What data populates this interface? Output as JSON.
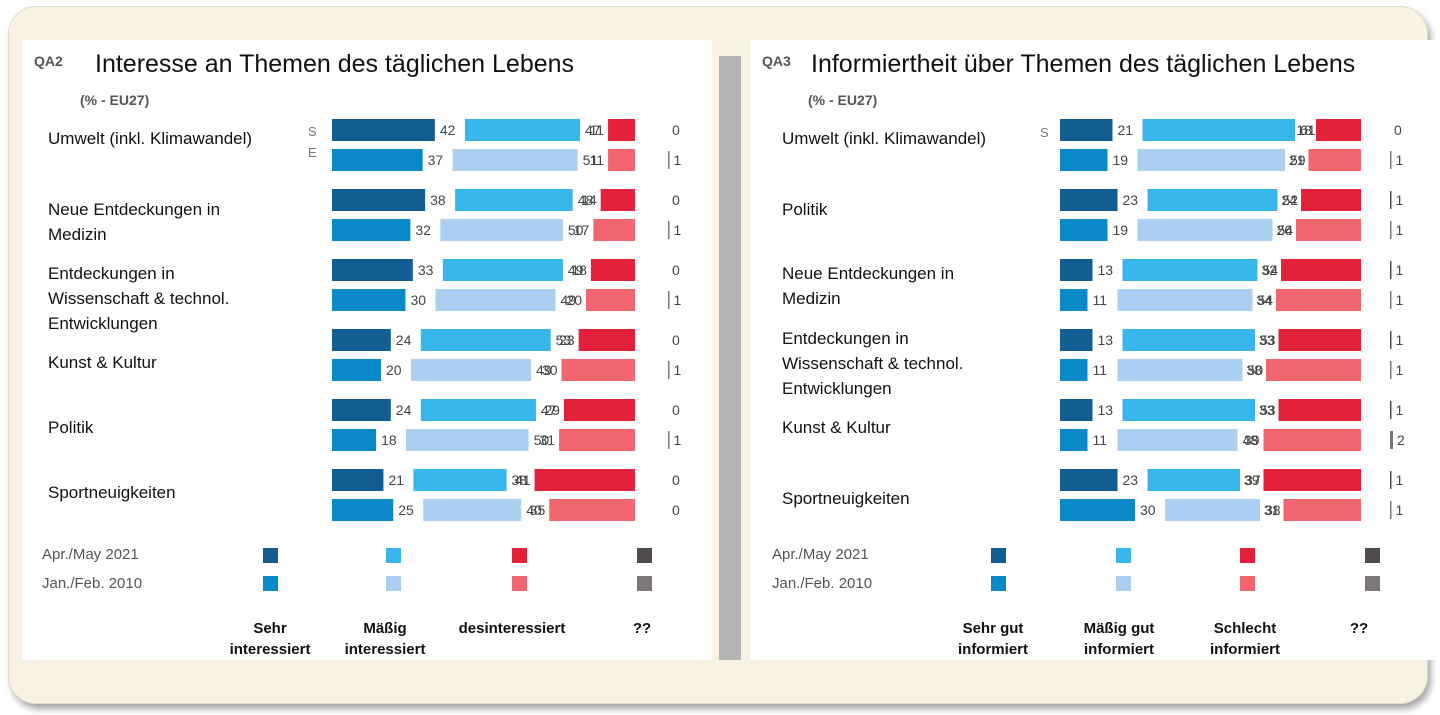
{
  "colors": {
    "very_2021": "#135d92",
    "very_2010": "#0a89c8",
    "mod_2021": "#38b6ec",
    "mod_2010": "#aacff0",
    "low_2021": "#e2213a",
    "low_2010": "#f2666f",
    "dk_2021": "#524c50",
    "dk_2010": "#7d7678",
    "label": "#444444"
  },
  "chart_data": [
    {
      "type": "bar",
      "id": "QA2",
      "qa_label": "QA2",
      "title": "Interesse an Themen des täglichen Lebens",
      "subtitle": "(% - EU27)",
      "periods": [
        "Apr./May 2021",
        "Jan./Feb. 2010"
      ],
      "responses": [
        "Sehr\ninteressiert",
        "Mäßig\ninteressiert",
        "desinteressiert",
        "??"
      ],
      "categories": [
        "Umwelt (inkl. Klimawandel)",
        "Neue Entdeckungen in\nMedizin",
        "Entdeckungen in\nWissenschaft & technol.\nEntwicklungen",
        "Kunst  & Kultur",
        "Politik",
        "Sportneuigkeiten"
      ],
      "series": [
        {
          "period": "Apr./May 2021",
          "values": [
            [
              42,
              47,
              11,
              0
            ],
            [
              38,
              48,
              14,
              0
            ],
            [
              33,
              49,
              18,
              0
            ],
            [
              24,
              53,
              23,
              0
            ],
            [
              24,
              47,
              29,
              0
            ],
            [
              21,
              38,
              41,
              0
            ]
          ]
        },
        {
          "period": "Jan./Feb. 2010",
          "values": [
            [
              37,
              51,
              11,
              1
            ],
            [
              32,
              50,
              17,
              1
            ],
            [
              30,
              49,
              20,
              1
            ],
            [
              20,
              49,
              30,
              1
            ],
            [
              18,
              50,
              31,
              1
            ],
            [
              25,
              40,
              35,
              0
            ]
          ]
        }
      ],
      "fragment_text": [
        "S",
        "E"
      ]
    },
    {
      "type": "bar",
      "id": "QA3",
      "qa_label": "QA3",
      "title": "Informiertheit über Themen des täglichen Lebens",
      "subtitle": "(% - EU27)",
      "periods": [
        "Apr./May 2021",
        "Jan./Feb. 2010"
      ],
      "responses": [
        "Sehr  gut\ninformiert",
        "Mäßig gut\ninformiert",
        "Schlecht\ninformiert",
        "??"
      ],
      "categories": [
        "Umwelt (inkl. Klimawandel)",
        "Politik",
        "Neue Entdeckungen in\nMedizin",
        "Entdeckungen in\nWissenschaft & technol.\nEntwicklungen",
        " Kunst  & Kultur",
        "Sportneuigkeiten"
      ],
      "series": [
        {
          "period": "Apr./May 2021",
          "values": [
            [
              21,
              61,
              18,
              0
            ],
            [
              23,
              52,
              24,
              1
            ],
            [
              13,
              54,
              32,
              1
            ],
            [
              13,
              53,
              33,
              1
            ],
            [
              13,
              53,
              33,
              1
            ],
            [
              23,
              37,
              39,
              1
            ]
          ]
        },
        {
          "period": "Jan./Feb. 2010",
          "values": [
            [
              19,
              59,
              21,
              1
            ],
            [
              19,
              54,
              26,
              1
            ],
            [
              11,
              54,
              34,
              1
            ],
            [
              11,
              50,
              38,
              1
            ],
            [
              11,
              48,
              39,
              2
            ],
            [
              30,
              38,
              31,
              1
            ]
          ]
        }
      ],
      "fragment_text": [
        "S",
        ""
      ]
    }
  ]
}
